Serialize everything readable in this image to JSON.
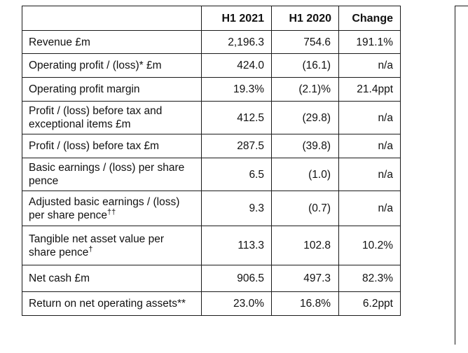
{
  "table": {
    "headers": {
      "label": "",
      "h1_2021": "H1 2021",
      "h1_2020": "H1 2020",
      "change": "Change"
    },
    "rows": [
      {
        "label_lines": [
          "Revenue £m"
        ],
        "suffix": "",
        "h1_2021": "2,196.3",
        "h1_2020": "754.6",
        "change": "191.1%",
        "height": 0
      },
      {
        "label_lines": [
          "Operating profit / (loss)* £m"
        ],
        "suffix": "",
        "h1_2021": "424.0",
        "h1_2020": "(16.1)",
        "change": "n/a"
      },
      {
        "label_lines": [
          "Operating profit margin"
        ],
        "suffix": "",
        "h1_2021": "19.3%",
        "h1_2020": "(2.1)%",
        "change": "21.4ppt"
      },
      {
        "label_lines": [
          "Profit / (loss) before tax and",
          "exceptional items £m"
        ],
        "suffix": "",
        "h1_2021": "412.5",
        "h1_2020": "(29.8)",
        "change": "n/a"
      },
      {
        "label_lines": [
          "Profit / (loss) before tax £m"
        ],
        "suffix": "",
        "h1_2021": "287.5",
        "h1_2020": "(39.8)",
        "change": "n/a"
      },
      {
        "label_lines": [
          "Basic earnings / (loss) per share",
          "pence"
        ],
        "suffix": "",
        "h1_2021": "6.5",
        "h1_2020": "(1.0)",
        "change": "n/a"
      },
      {
        "label_lines": [
          "Adjusted basic earnings / (loss)",
          "per share pence"
        ],
        "suffix": "††",
        "h1_2021": "9.3",
        "h1_2020": "(0.7)",
        "change": "n/a"
      },
      {
        "label_lines": [
          "Tangible net asset value per",
          "share pence"
        ],
        "suffix": "†",
        "h1_2021": "113.3",
        "h1_2020": "102.8",
        "change": "10.2%"
      },
      {
        "label_lines": [
          "Net cash £m"
        ],
        "suffix": "",
        "h1_2021": "906.5",
        "h1_2020": "497.3",
        "change": "82.3%"
      },
      {
        "label_lines": [
          "Return on net operating assets**"
        ],
        "suffix": "",
        "h1_2021": "23.0%",
        "h1_2020": "16.8%",
        "change": "6.2ppt"
      }
    ]
  }
}
